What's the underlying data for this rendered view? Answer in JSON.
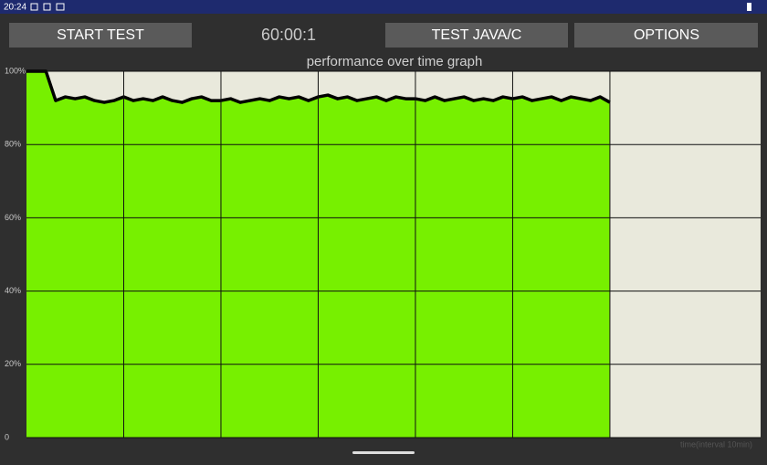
{
  "status_bar": {
    "time": "20:24"
  },
  "buttons": {
    "start": "START TEST",
    "java": "TEST JAVA/C",
    "options": "OPTIONS"
  },
  "timer": "60:00:1",
  "chart_data": {
    "type": "area",
    "title": "performance over time graph",
    "x_label": "time(interval 10min)",
    "x": [
      0,
      1,
      2,
      3,
      4,
      5,
      6,
      7,
      8,
      9,
      10,
      11,
      12,
      13,
      14,
      15,
      16,
      17,
      18,
      19,
      20,
      21,
      22,
      23,
      24,
      25,
      26,
      27,
      28,
      29,
      30,
      31,
      32,
      33,
      34,
      35,
      36,
      37,
      38,
      39,
      40,
      41,
      42,
      43,
      44,
      45,
      46,
      47,
      48,
      49,
      50,
      51,
      52,
      53,
      54,
      55,
      56,
      57,
      58,
      59,
      60
    ],
    "values": [
      100,
      100,
      100,
      92,
      93,
      92.5,
      93,
      92,
      91.5,
      92,
      93,
      92,
      92.5,
      92,
      93,
      92,
      91.5,
      92.5,
      93,
      92,
      92,
      92.5,
      91.5,
      92,
      92.5,
      92,
      93,
      92.5,
      93,
      92,
      93,
      93.5,
      92.5,
      93,
      92,
      92.5,
      93,
      92,
      93,
      92.5,
      92.5,
      92,
      93,
      92,
      92.5,
      93,
      92,
      92.5,
      92,
      93,
      92.5,
      93,
      92,
      92.5,
      93,
      92,
      93,
      92.5,
      92,
      93,
      91.5
    ],
    "color": "#77f000",
    "line_color": "#000000",
    "xlim": [
      0,
      75.5
    ],
    "ylim": [
      0,
      100
    ],
    "yticks": [
      0,
      {
        "value": 20,
        "label": "20%"
      },
      {
        "value": 40,
        "label": "40%"
      },
      {
        "value": 60,
        "label": "60%"
      },
      {
        "value": 80,
        "label": "80%"
      },
      {
        "value": 100,
        "label": "100%"
      }
    ],
    "x_grid_lines": [
      10,
      20,
      30,
      40,
      50,
      60
    ],
    "grid": true
  }
}
